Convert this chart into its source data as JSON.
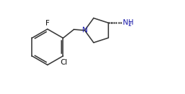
{
  "background_color": "#ffffff",
  "bond_color": "#3a3a3a",
  "text_color": "#000000",
  "N_color": "#1a1aaa",
  "NH2_color": "#1a1aaa",
  "figsize": [
    2.68,
    1.37
  ],
  "dpi": 100,
  "F_label": "F",
  "Cl_label": "Cl",
  "N_label": "N",
  "xlim": [
    0,
    10.0
  ],
  "ylim": [
    0,
    5.2
  ]
}
